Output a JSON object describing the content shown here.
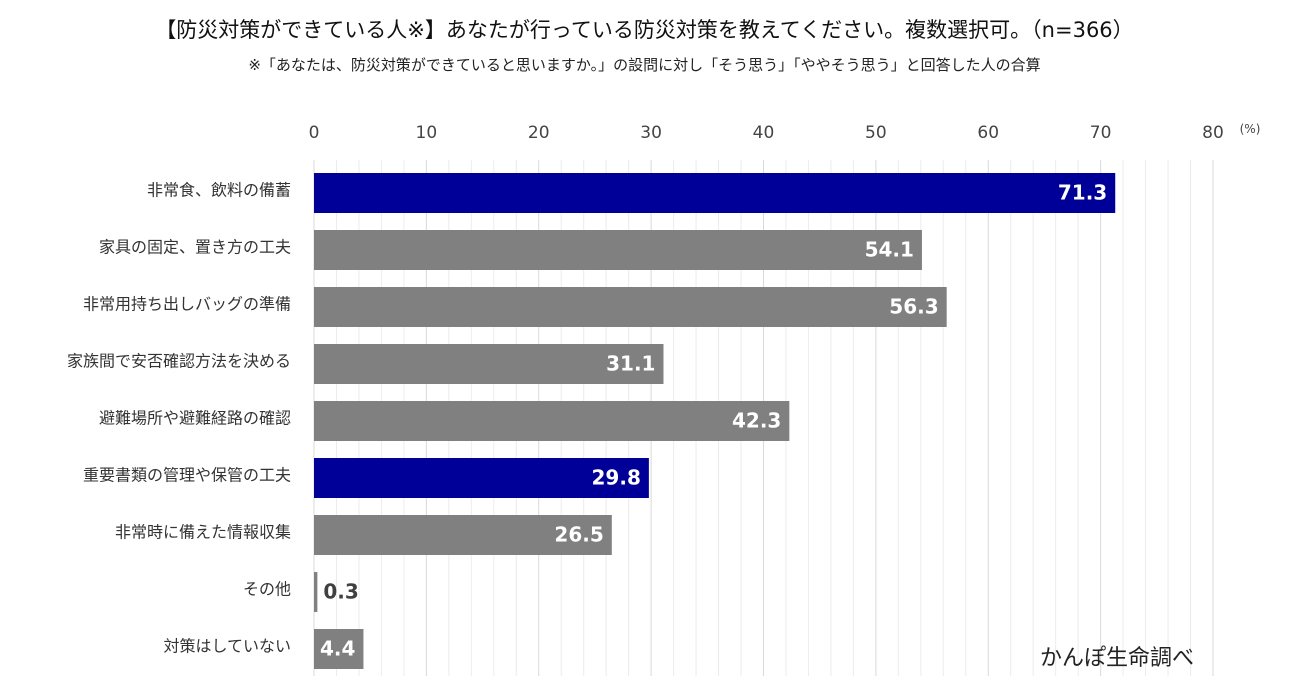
{
  "title": "【防災対策ができている人※】あなたが行っている防災対策を教えてください。複数選択可。（n=366）",
  "subtitle": "※「あなたは、防災対策ができていると思いますか。」の設問に対し「そう思う」「ややそう思う」と回答した人の合算",
  "credit": "かんぽ生命調べ",
  "colors": {
    "highlight": "#000099",
    "normal": "#808080",
    "grid_major": "#d9d9d9",
    "grid_minor": "#ececec",
    "label_inside": "#ffffff",
    "label_outside": "#404040"
  },
  "chart_data": {
    "type": "bar",
    "orientation": "horizontal",
    "unit": "(%)",
    "xlim": [
      0,
      80
    ],
    "ticks": [
      0,
      10,
      20,
      30,
      40,
      50,
      60,
      70,
      80
    ],
    "tick_labels": [
      "0",
      "10",
      "20",
      "30",
      "40",
      "50",
      "60",
      "70",
      "80"
    ],
    "grid": true,
    "categories": [
      "非常食、飲料の備蓄",
      "家具の固定、置き方の工夫",
      "非常用持ち出しバッグの準備",
      "家族間で安否確認方法を決める",
      "避難場所や避難経路の確認",
      "重要書類の管理や保管の工夫",
      "非常時に備えた情報収集",
      "その他",
      "対策はしていない"
    ],
    "values": [
      71.3,
      54.1,
      56.3,
      31.1,
      42.3,
      29.8,
      26.5,
      0.3,
      4.4
    ],
    "value_labels": [
      "71.3",
      "54.1",
      "56.3",
      "31.1",
      "42.3",
      "29.8",
      "26.5",
      "0.3",
      "4.4"
    ],
    "highlighted": [
      true,
      false,
      false,
      false,
      false,
      true,
      false,
      false,
      false
    ]
  }
}
